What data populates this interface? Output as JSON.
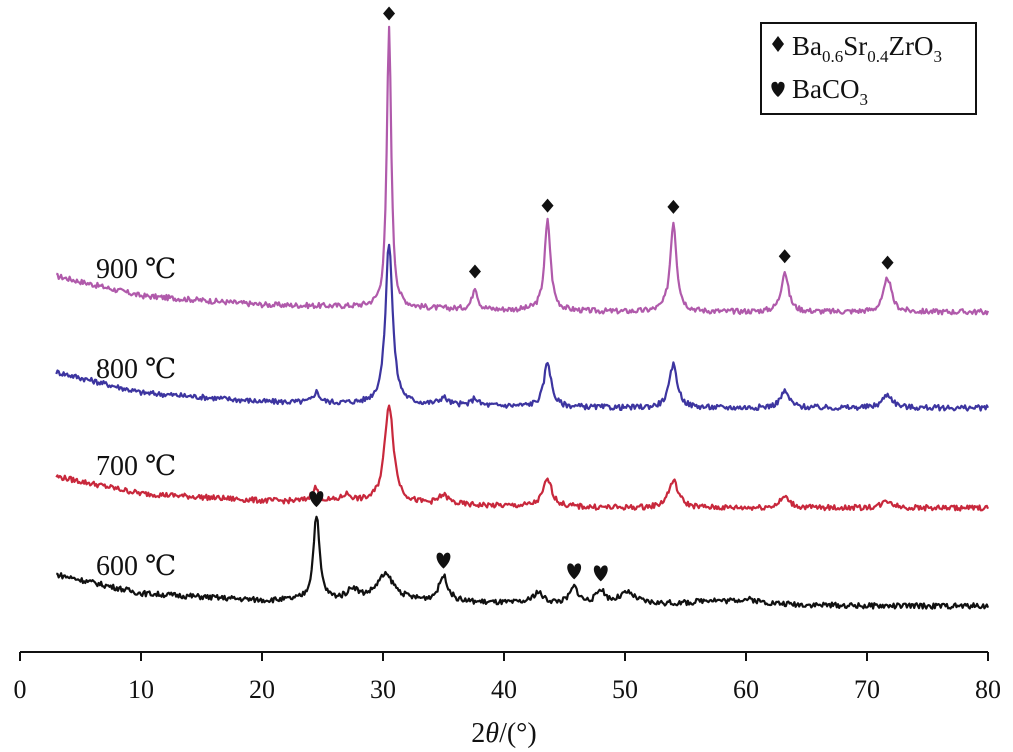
{
  "chart_data": {
    "type": "line",
    "title": "",
    "xlabel": {
      "prefix": "2",
      "symbol": "θ",
      "unit": "/(°)"
    },
    "ylabel": "",
    "xlim": [
      0,
      80
    ],
    "xticks": [
      "0",
      "10",
      "20",
      "30",
      "40",
      "50",
      "60",
      "70",
      "80"
    ],
    "grid": false,
    "legend_position": "top-right",
    "legend": [
      {
        "marker": "diamond",
        "base": "Ba",
        "sub1": "0.6",
        "mid": "Sr",
        "sub2": "0.4",
        "tail": "ZrO",
        "sub3": "3"
      },
      {
        "marker": "heart",
        "base": "BaCO",
        "sub1": "3"
      }
    ],
    "series": [
      {
        "name": "900 ℃",
        "color": "#b05aab",
        "baseline": [
          [
            3,
            0.4
          ],
          [
            10,
            0.18
          ],
          [
            20,
            0.08
          ],
          [
            30,
            0.05
          ],
          [
            40,
            0.02
          ],
          [
            50,
            0.0
          ],
          [
            60,
            0.0
          ],
          [
            70,
            0.0
          ],
          [
            80,
            0.0
          ]
        ],
        "peaks": [
          [
            30.5,
            3.1,
            0.22
          ],
          [
            37.6,
            0.25,
            0.25
          ],
          [
            43.6,
            1.0,
            0.3
          ],
          [
            54.0,
            1.0,
            0.32
          ],
          [
            63.2,
            0.45,
            0.35
          ],
          [
            71.7,
            0.38,
            0.38
          ]
        ]
      },
      {
        "name": "800 ℃",
        "color": "#3d35a0",
        "baseline": [
          [
            3,
            0.4
          ],
          [
            10,
            0.17
          ],
          [
            20,
            0.07
          ],
          [
            30,
            0.04
          ],
          [
            40,
            0.02
          ],
          [
            50,
            0.0
          ],
          [
            60,
            0.0
          ],
          [
            70,
            0.0
          ],
          [
            80,
            0.0
          ]
        ],
        "peaks": [
          [
            24.5,
            0.12,
            0.3
          ],
          [
            30.5,
            1.8,
            0.35
          ],
          [
            35.0,
            0.08,
            0.4
          ],
          [
            37.6,
            0.08,
            0.3
          ],
          [
            43.6,
            0.5,
            0.35
          ],
          [
            54.0,
            0.48,
            0.4
          ],
          [
            63.2,
            0.18,
            0.45
          ],
          [
            71.7,
            0.15,
            0.5
          ]
        ]
      },
      {
        "name": "700 ℃",
        "color": "#c8283c",
        "baseline": [
          [
            3,
            0.35
          ],
          [
            10,
            0.16
          ],
          [
            20,
            0.08
          ],
          [
            30,
            0.05
          ],
          [
            40,
            0.02
          ],
          [
            50,
            0.0
          ],
          [
            60,
            0.0
          ],
          [
            70,
            0.0
          ],
          [
            80,
            0.0
          ]
        ],
        "peaks": [
          [
            24.4,
            0.15,
            0.35
          ],
          [
            27.0,
            0.08,
            0.5
          ],
          [
            30.5,
            1.1,
            0.45
          ],
          [
            35.0,
            0.1,
            0.5
          ],
          [
            43.6,
            0.3,
            0.45
          ],
          [
            54.0,
            0.3,
            0.5
          ],
          [
            63.2,
            0.12,
            0.5
          ],
          [
            71.7,
            0.08,
            0.55
          ]
        ]
      },
      {
        "name": "600 ℃",
        "color": "#111111",
        "baseline": [
          [
            3,
            0.35
          ],
          [
            10,
            0.14
          ],
          [
            20,
            0.06
          ],
          [
            30,
            0.06
          ],
          [
            40,
            0.03
          ],
          [
            50,
            0.02
          ],
          [
            60,
            0.02
          ],
          [
            70,
            0.0
          ],
          [
            80,
            0.0
          ]
        ],
        "peaks": [
          [
            24.5,
            0.95,
            0.3
          ],
          [
            27.5,
            0.12,
            0.5
          ],
          [
            30.2,
            0.28,
            0.9
          ],
          [
            35.0,
            0.28,
            0.45
          ],
          [
            42.8,
            0.12,
            0.5
          ],
          [
            45.8,
            0.18,
            0.4
          ],
          [
            48.0,
            0.15,
            0.4
          ],
          [
            50.2,
            0.12,
            0.8
          ],
          [
            57.0,
            0.04,
            1.0
          ],
          [
            60.0,
            0.05,
            1.5
          ]
        ]
      }
    ],
    "annotations": [
      {
        "series": "900 ℃",
        "marker": "diamond",
        "x": [
          30.5,
          37.6,
          43.6,
          54.0,
          63.2,
          71.7
        ]
      },
      {
        "series": "600 ℃",
        "marker": "heart",
        "x": [
          24.5,
          35.0,
          45.8,
          48.0
        ]
      }
    ]
  }
}
